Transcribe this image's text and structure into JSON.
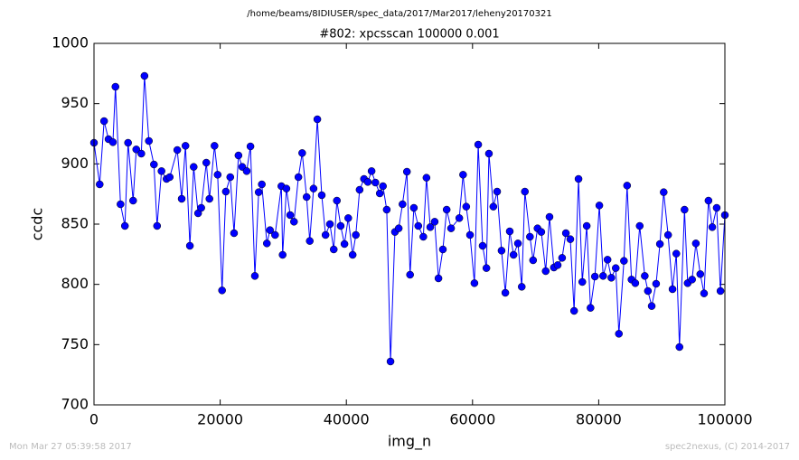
{
  "chart_data": {
    "type": "line",
    "suptitle": "/home/beams/8IDIUSER/spec_data/2017/Mar2017/leheny20170321",
    "title": "#802: xpcsscan 100000 0.001",
    "x_label": "img_n",
    "y_label": "ccdc",
    "footer_left": "Mon Mar 27 05:39:58 2017",
    "footer_right": "spec2nexus, (C) 2014-2017",
    "xlim": [
      0,
      100000
    ],
    "ylim": [
      700,
      1000
    ],
    "xticks": [
      0,
      20000,
      40000,
      60000,
      80000,
      100000
    ],
    "yticks": [
      700,
      750,
      800,
      850,
      900,
      950,
      1000
    ],
    "x": [
      0,
      900,
      1600,
      2300,
      3000,
      3400,
      4200,
      4900,
      5400,
      6200,
      6700,
      7500,
      8000,
      8700,
      9500,
      10000,
      10700,
      11500,
      12000,
      13200,
      13900,
      14500,
      15200,
      15800,
      16500,
      17000,
      17800,
      18300,
      19100,
      19600,
      20300,
      20900,
      21600,
      22200,
      22900,
      23500,
      24200,
      24800,
      25500,
      26100,
      26600,
      27400,
      27900,
      28700,
      29700,
      29900,
      30500,
      31100,
      31700,
      32400,
      33000,
      33700,
      34200,
      34800,
      35400,
      36100,
      36700,
      37400,
      38000,
      38500,
      39100,
      39700,
      40300,
      41000,
      41500,
      42100,
      42800,
      43400,
      44000,
      44600,
      45300,
      45800,
      46400,
      47000,
      47700,
      48300,
      48900,
      49600,
      50100,
      50700,
      51400,
      52200,
      52700,
      53300,
      54000,
      54600,
      55300,
      55900,
      56600,
      57900,
      58500,
      59000,
      59600,
      60300,
      60900,
      61600,
      62200,
      62600,
      63300,
      63900,
      64600,
      65200,
      65900,
      66500,
      67200,
      67800,
      68300,
      69100,
      69600,
      70300,
      70900,
      71600,
      72200,
      72900,
      73500,
      74200,
      74800,
      75500,
      76100,
      76800,
      77400,
      78100,
      78700,
      79400,
      80100,
      80700,
      81400,
      82000,
      82700,
      83200,
      84000,
      84500,
      85200,
      85800,
      86500,
      87300,
      87800,
      88400,
      89100,
      89700,
      90300,
      91000,
      91700,
      92300,
      92800,
      93600,
      94100,
      94800,
      95400,
      96100,
      96700,
      97400,
      98000,
      98700,
      99300,
      100000
    ],
    "series": [
      {
        "name": "ccdc",
        "color": "#0000ff",
        "values": [
          917.5,
          883,
          935.5,
          920.5,
          918,
          964,
          866.5,
          848.5,
          917.5,
          869.5,
          912,
          908.5,
          973,
          919,
          899.5,
          848.5,
          894,
          887.5,
          889,
          911.5,
          871,
          915,
          832,
          897.5,
          859,
          863.5,
          901,
          871,
          915,
          891,
          795,
          877,
          889,
          842.5,
          907,
          897.5,
          894,
          914.5,
          807,
          876.5,
          883,
          834,
          845,
          841,
          881.5,
          824.5,
          879.5,
          857.5,
          852,
          889,
          909,
          872.5,
          836,
          879.5,
          937,
          874,
          841,
          850,
          829,
          869.5,
          848.5,
          833.5,
          855,
          824.5,
          841,
          878.5,
          887.5,
          885,
          894,
          884.5,
          875.5,
          881.5,
          862,
          736,
          843.5,
          846.5,
          866.5,
          893.5,
          808,
          863.5,
          848.5,
          839.5,
          888.5,
          847.5,
          852,
          805,
          829,
          862,
          846.5,
          855,
          891,
          864.5,
          841,
          801,
          916,
          832,
          813.5,
          908.5,
          864.5,
          877,
          828,
          793,
          844,
          824.5,
          834,
          798,
          877,
          839.5,
          820,
          846.5,
          843.5,
          811,
          856,
          814,
          816,
          822,
          842.5,
          837.5,
          778,
          887.5,
          802,
          848.5,
          780.5,
          806.5,
          865.5,
          807,
          820.5,
          805.5,
          813.5,
          759,
          819.5,
          882,
          804,
          801,
          848.5,
          807,
          794.5,
          782,
          800.5,
          833.5,
          876.5,
          841,
          796,
          825.5,
          748,
          862,
          801,
          804,
          834,
          808.5,
          792.5,
          869.5,
          847.5,
          863.5,
          794.5,
          857.5
        ]
      }
    ]
  }
}
